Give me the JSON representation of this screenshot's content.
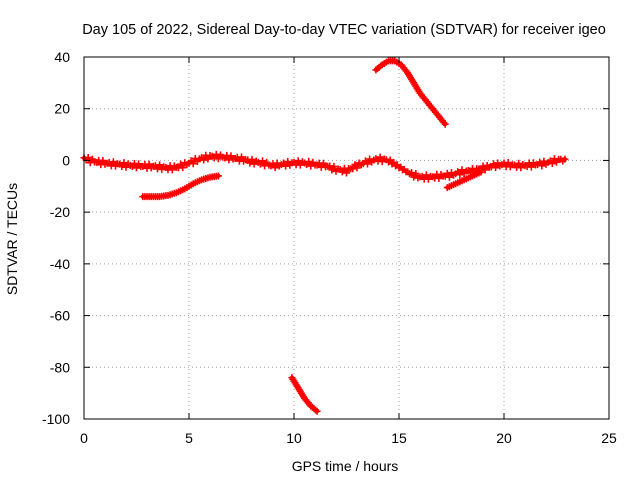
{
  "chart_data": {
    "type": "scatter",
    "title": "Day 105 of 2022, Sidereal Day-to-day VTEC variation (SDTVAR) for receiver igeo",
    "xlabel": "GPS time / hours",
    "ylabel": "SDTVAR / TECUs",
    "xlim": [
      0,
      25
    ],
    "ylim": [
      -100,
      40
    ],
    "grid": true,
    "grid_style": "dotted",
    "x_ticks": [
      0,
      5,
      10,
      15,
      20,
      25
    ],
    "y_ticks": [
      -100,
      -80,
      -60,
      -40,
      -20,
      0,
      20,
      40
    ],
    "marker": "+",
    "series_color": "#ff0000",
    "series": [
      {
        "name": "main band",
        "x": [
          0,
          0.3,
          0.6,
          1,
          1.5,
          2,
          2.5,
          3,
          3.5,
          4,
          4.5,
          5,
          5.5,
          6,
          6.5,
          7,
          7.5,
          8,
          8.5,
          9,
          9.5,
          10,
          10.5,
          11,
          11.5,
          12,
          12.5,
          13,
          13.5,
          14,
          14.5,
          15,
          15.5,
          16,
          16.5,
          17,
          17.5,
          18,
          18.5,
          19,
          19.5,
          20,
          20.5,
          21,
          21.5,
          22,
          22.5,
          22.9
        ],
        "y": [
          1,
          0,
          -0.5,
          -1,
          -1.5,
          -1.8,
          -2,
          -2.2,
          -2.5,
          -3,
          -2.5,
          -1,
          0.5,
          1.5,
          1.5,
          1,
          0.5,
          -0.5,
          -1,
          -2,
          -1.5,
          -1,
          -1,
          -1.5,
          -2,
          -3.5,
          -4,
          -2,
          -0.5,
          0.5,
          0,
          -2.5,
          -5,
          -6.5,
          -6.5,
          -6,
          -5.5,
          -4.5,
          -4,
          -3,
          -2,
          -1.5,
          -2,
          -2,
          -1.5,
          -1,
          0,
          0.5
        ]
      },
      {
        "name": "lower arc",
        "x": [
          2.8,
          3.2,
          3.6,
          4.0,
          4.4,
          4.8,
          5.2,
          5.6,
          6.0,
          6.4
        ],
        "y": [
          -14,
          -14,
          -14,
          -13.5,
          -12.5,
          -11,
          -9,
          -7.5,
          -6.5,
          -6
        ]
      },
      {
        "name": "upper arc",
        "x": [
          13.9,
          14.2,
          14.5,
          14.8,
          15.1,
          15.4,
          15.7,
          16.0,
          16.4,
          16.8,
          17.2
        ],
        "y": [
          35,
          37,
          38.5,
          38.5,
          37,
          34,
          30,
          26,
          22,
          18,
          14
        ]
      },
      {
        "name": "deep dip",
        "x": [
          9.9,
          10.2,
          10.5,
          10.8,
          11.1
        ],
        "y": [
          -84,
          -88,
          -92,
          -95,
          -97
        ]
      },
      {
        "name": "recovery branch",
        "x": [
          17.3,
          17.7,
          18.1,
          18.5,
          18.9
        ],
        "y": [
          -10.5,
          -9,
          -7.5,
          -6,
          -4.5
        ]
      }
    ]
  }
}
